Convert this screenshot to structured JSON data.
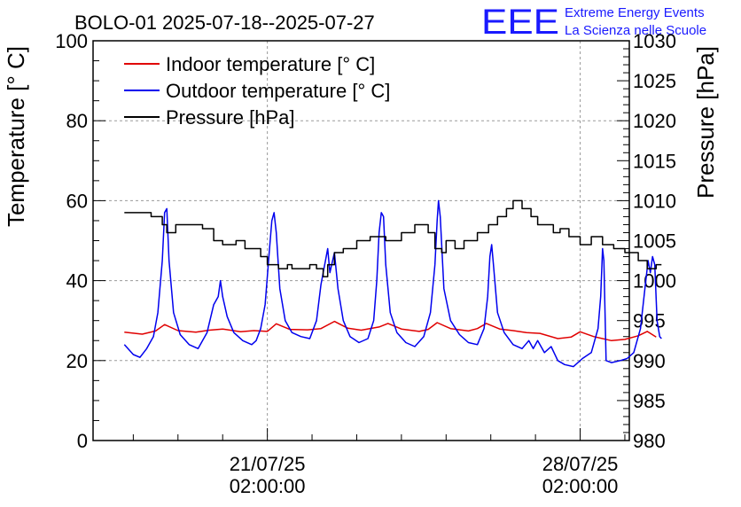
{
  "chart_data": {
    "type": "line",
    "title": "BOLO-01 2025-07-18--2025-07-27",
    "logo": {
      "text": "EEE",
      "line1": "Extreme Energy Events",
      "line2": "La Scienza nelle Scuole",
      "color": "#1a1aff"
    },
    "ylabel": "Temperature [° C]",
    "y2label": "Pressure [hPa]",
    "ylim": [
      0,
      100
    ],
    "y2lim": [
      980,
      1030
    ],
    "yticks": [
      "0",
      "20",
      "40",
      "60",
      "80",
      "100"
    ],
    "y2ticks": [
      "980",
      "985",
      "990",
      "995",
      "1000",
      "1005",
      "1010",
      "1015",
      "1020",
      "1025",
      "1030"
    ],
    "xlim_days": [
      -3.9,
      8.1
    ],
    "xlabels": [
      {
        "day": 0,
        "date": "21/07/25",
        "time": "02:00:00"
      },
      {
        "day": 7,
        "date": "28/07/25",
        "time": "02:00:00"
      }
    ],
    "grid": true,
    "legend_position": "top-left",
    "series": [
      {
        "name": "Indoor temperature [° C]",
        "axis": "left",
        "color": "#e00000",
        "points": [
          [
            -3.2,
            27.1
          ],
          [
            -2.8,
            26.6
          ],
          [
            -2.5,
            27.4
          ],
          [
            -2.3,
            29.0
          ],
          [
            -2.0,
            27.5
          ],
          [
            -1.6,
            27.1
          ],
          [
            -1.3,
            27.6
          ],
          [
            -1.0,
            27.9
          ],
          [
            -0.6,
            27.2
          ],
          [
            -0.3,
            27.5
          ],
          [
            0.0,
            27.3
          ],
          [
            0.2,
            29.2
          ],
          [
            0.5,
            27.8
          ],
          [
            0.9,
            27.7
          ],
          [
            1.2,
            28.0
          ],
          [
            1.5,
            29.8
          ],
          [
            1.8,
            28.1
          ],
          [
            2.1,
            27.6
          ],
          [
            2.5,
            28.4
          ],
          [
            2.7,
            29.3
          ],
          [
            3.0,
            27.9
          ],
          [
            3.4,
            27.3
          ],
          [
            3.6,
            27.8
          ],
          [
            3.8,
            29.5
          ],
          [
            4.1,
            28.0
          ],
          [
            4.5,
            27.4
          ],
          [
            4.7,
            28.0
          ],
          [
            4.9,
            29.3
          ],
          [
            5.2,
            27.9
          ],
          [
            5.5,
            27.5
          ],
          [
            5.8,
            27.0
          ],
          [
            6.1,
            26.8
          ],
          [
            6.5,
            25.5
          ],
          [
            6.8,
            25.9
          ],
          [
            7.0,
            27.2
          ],
          [
            7.3,
            26.0
          ],
          [
            7.7,
            25.0
          ],
          [
            8.0,
            25.3
          ],
          [
            8.3,
            26.2
          ],
          [
            8.5,
            27.3
          ],
          [
            8.7,
            25.9
          ]
        ]
      },
      {
        "name": "Outdoor temperature [° C]",
        "axis": "left",
        "color": "#0000ee",
        "points": [
          [
            -3.2,
            24.0
          ],
          [
            -3.0,
            21.5
          ],
          [
            -2.85,
            20.8
          ],
          [
            -2.7,
            23.0
          ],
          [
            -2.55,
            26.0
          ],
          [
            -2.45,
            32.0
          ],
          [
            -2.35,
            45.0
          ],
          [
            -2.3,
            57.0
          ],
          [
            -2.25,
            58.0
          ],
          [
            -2.2,
            45.0
          ],
          [
            -2.1,
            32.0
          ],
          [
            -1.95,
            26.5
          ],
          [
            -1.75,
            24.0
          ],
          [
            -1.55,
            23.0
          ],
          [
            -1.35,
            27.0
          ],
          [
            -1.2,
            34.0
          ],
          [
            -1.1,
            36.0
          ],
          [
            -1.05,
            40.0
          ],
          [
            -1.0,
            36.0
          ],
          [
            -0.9,
            31.0
          ],
          [
            -0.75,
            27.0
          ],
          [
            -0.55,
            25.0
          ],
          [
            -0.35,
            24.0
          ],
          [
            -0.25,
            25.0
          ],
          [
            -0.15,
            28.0
          ],
          [
            -0.05,
            34.0
          ],
          [
            0.05,
            48.0
          ],
          [
            0.1,
            55.0
          ],
          [
            0.15,
            57.0
          ],
          [
            0.2,
            52.0
          ],
          [
            0.28,
            38.0
          ],
          [
            0.4,
            30.0
          ],
          [
            0.55,
            27.0
          ],
          [
            0.75,
            26.0
          ],
          [
            0.95,
            25.5
          ],
          [
            1.1,
            30.0
          ],
          [
            1.2,
            39.0
          ],
          [
            1.3,
            45.0
          ],
          [
            1.35,
            48.0
          ],
          [
            1.4,
            42.0
          ],
          [
            1.5,
            47.0
          ],
          [
            1.58,
            38.0
          ],
          [
            1.7,
            30.0
          ],
          [
            1.85,
            26.0
          ],
          [
            2.05,
            24.5
          ],
          [
            2.25,
            25.5
          ],
          [
            2.38,
            30.0
          ],
          [
            2.45,
            40.0
          ],
          [
            2.5,
            52.0
          ],
          [
            2.55,
            57.0
          ],
          [
            2.6,
            56.0
          ],
          [
            2.65,
            44.0
          ],
          [
            2.75,
            32.0
          ],
          [
            2.9,
            27.0
          ],
          [
            3.1,
            24.5
          ],
          [
            3.3,
            23.5
          ],
          [
            3.5,
            26.0
          ],
          [
            3.65,
            32.0
          ],
          [
            3.75,
            44.0
          ],
          [
            3.8,
            55.0
          ],
          [
            3.83,
            60.0
          ],
          [
            3.87,
            56.0
          ],
          [
            3.95,
            38.0
          ],
          [
            4.1,
            30.0
          ],
          [
            4.3,
            26.5
          ],
          [
            4.5,
            24.5
          ],
          [
            4.7,
            24.0
          ],
          [
            4.85,
            28.0
          ],
          [
            4.93,
            36.0
          ],
          [
            4.98,
            46.0
          ],
          [
            5.02,
            49.0
          ],
          [
            5.06,
            44.0
          ],
          [
            5.15,
            32.0
          ],
          [
            5.3,
            27.0
          ],
          [
            5.5,
            24.0
          ],
          [
            5.7,
            23.0
          ],
          [
            5.85,
            25.0
          ],
          [
            5.95,
            23.0
          ],
          [
            6.05,
            25.0
          ],
          [
            6.2,
            22.0
          ],
          [
            6.35,
            23.5
          ],
          [
            6.5,
            20.0
          ],
          [
            6.65,
            19.0
          ],
          [
            6.85,
            18.5
          ],
          [
            7.05,
            20.5
          ],
          [
            7.25,
            22.0
          ],
          [
            7.4,
            28.0
          ],
          [
            7.46,
            36.0
          ],
          [
            7.5,
            48.0
          ],
          [
            7.53,
            45.0
          ],
          [
            7.58,
            20.0
          ],
          [
            7.7,
            19.5
          ],
          [
            7.9,
            20.0
          ],
          [
            8.05,
            20.5
          ],
          [
            8.2,
            22.0
          ],
          [
            8.35,
            28.0
          ],
          [
            8.45,
            38.0
          ],
          [
            8.52,
            45.0
          ],
          [
            8.57,
            42.0
          ],
          [
            8.62,
            46.0
          ],
          [
            8.67,
            44.0
          ],
          [
            8.72,
            30.0
          ],
          [
            8.78,
            26.0
          ],
          [
            8.82,
            25.5
          ]
        ]
      },
      {
        "name": "Pressure [hPa]",
        "axis": "right",
        "color": "#000000",
        "points": [
          [
            -3.2,
            1008.5
          ],
          [
            -2.6,
            1008.5
          ],
          [
            -2.6,
            1008.0
          ],
          [
            -2.35,
            1008.0
          ],
          [
            -2.35,
            1007.0
          ],
          [
            -2.25,
            1007.0
          ],
          [
            -2.25,
            1006.0
          ],
          [
            -2.05,
            1006.0
          ],
          [
            -2.05,
            1007.0
          ],
          [
            -1.45,
            1007.0
          ],
          [
            -1.45,
            1006.5
          ],
          [
            -1.2,
            1006.5
          ],
          [
            -1.2,
            1005.0
          ],
          [
            -1.0,
            1005.0
          ],
          [
            -1.0,
            1004.5
          ],
          [
            -0.7,
            1004.5
          ],
          [
            -0.7,
            1005.0
          ],
          [
            -0.5,
            1005.0
          ],
          [
            -0.5,
            1004.0
          ],
          [
            -0.15,
            1004.0
          ],
          [
            -0.15,
            1003.0
          ],
          [
            0.0,
            1003.0
          ],
          [
            0.0,
            1002.0
          ],
          [
            0.25,
            1002.0
          ],
          [
            0.25,
            1001.5
          ],
          [
            0.45,
            1001.5
          ],
          [
            0.45,
            1002.0
          ],
          [
            0.55,
            1002.0
          ],
          [
            0.55,
            1001.5
          ],
          [
            0.95,
            1001.5
          ],
          [
            0.95,
            1002.0
          ],
          [
            1.1,
            1002.0
          ],
          [
            1.1,
            1001.5
          ],
          [
            1.25,
            1001.5
          ],
          [
            1.25,
            1000.5
          ],
          [
            1.35,
            1000.5
          ],
          [
            1.35,
            1002.0
          ],
          [
            1.5,
            1002.0
          ],
          [
            1.5,
            1003.5
          ],
          [
            1.7,
            1003.5
          ],
          [
            1.7,
            1004.0
          ],
          [
            2.0,
            1004.0
          ],
          [
            2.0,
            1005.0
          ],
          [
            2.3,
            1005.0
          ],
          [
            2.3,
            1005.5
          ],
          [
            2.65,
            1005.5
          ],
          [
            2.65,
            1005.0
          ],
          [
            3.0,
            1005.0
          ],
          [
            3.0,
            1006.0
          ],
          [
            3.3,
            1006.0
          ],
          [
            3.3,
            1007.0
          ],
          [
            3.6,
            1007.0
          ],
          [
            3.6,
            1006.0
          ],
          [
            3.75,
            1006.0
          ],
          [
            3.75,
            1004.0
          ],
          [
            3.9,
            1004.0
          ],
          [
            3.9,
            1003.5
          ],
          [
            4.0,
            1003.5
          ],
          [
            4.0,
            1005.0
          ],
          [
            4.2,
            1005.0
          ],
          [
            4.2,
            1004.0
          ],
          [
            4.4,
            1004.0
          ],
          [
            4.4,
            1005.0
          ],
          [
            4.7,
            1005.0
          ],
          [
            4.7,
            1006.0
          ],
          [
            4.95,
            1006.0
          ],
          [
            4.95,
            1007.0
          ],
          [
            5.15,
            1007.0
          ],
          [
            5.15,
            1008.0
          ],
          [
            5.35,
            1008.0
          ],
          [
            5.35,
            1009.0
          ],
          [
            5.5,
            1009.0
          ],
          [
            5.5,
            1010.0
          ],
          [
            5.7,
            1010.0
          ],
          [
            5.7,
            1009.0
          ],
          [
            5.9,
            1009.0
          ],
          [
            5.9,
            1008.0
          ],
          [
            6.05,
            1008.0
          ],
          [
            6.05,
            1007.0
          ],
          [
            6.4,
            1007.0
          ],
          [
            6.4,
            1006.0
          ],
          [
            6.55,
            1006.0
          ],
          [
            6.55,
            1006.5
          ],
          [
            6.75,
            1006.5
          ],
          [
            6.75,
            1005.5
          ],
          [
            7.0,
            1005.5
          ],
          [
            7.0,
            1004.5
          ],
          [
            7.25,
            1004.5
          ],
          [
            7.25,
            1005.5
          ],
          [
            7.5,
            1005.5
          ],
          [
            7.5,
            1004.5
          ],
          [
            7.75,
            1004.5
          ],
          [
            7.75,
            1004.0
          ],
          [
            8.0,
            1004.0
          ],
          [
            8.0,
            1003.5
          ],
          [
            8.3,
            1003.5
          ],
          [
            8.3,
            1002.5
          ],
          [
            8.5,
            1002.5
          ],
          [
            8.5,
            1001.5
          ],
          [
            8.7,
            1001.5
          ],
          [
            8.7,
            1002.0
          ],
          [
            8.82,
            1002.0
          ]
        ]
      }
    ]
  }
}
